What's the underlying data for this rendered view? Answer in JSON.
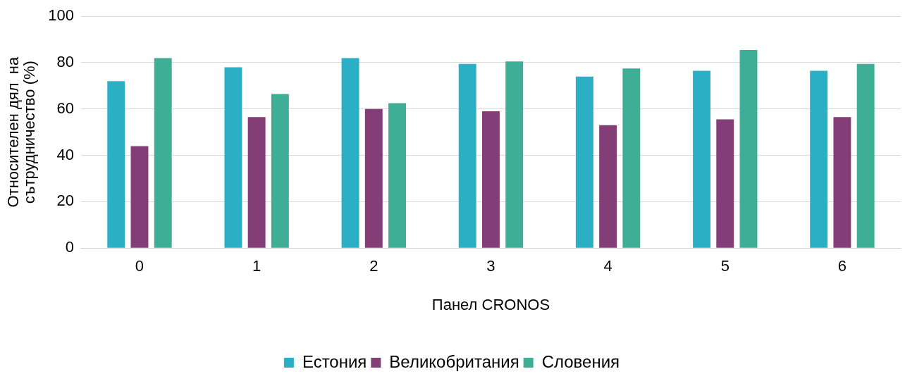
{
  "chart_data": {
    "type": "bar",
    "xlabel": "Панел CRONOS",
    "ylabel": "Относителен дял  на\nсътрудничество (%)",
    "categories": [
      "0",
      "1",
      "2",
      "3",
      "4",
      "5",
      "6"
    ],
    "series": [
      {
        "name": "Естония",
        "color": "#2aafc4",
        "values": [
          72,
          78,
          82,
          79.5,
          74,
          76.5,
          76.5
        ]
      },
      {
        "name": "Великобритания",
        "color": "#833e78",
        "values": [
          44,
          56.5,
          60,
          59,
          53,
          55.5,
          56.5
        ]
      },
      {
        "name": "Словения",
        "color": "#3eae96",
        "values": [
          82,
          66.5,
          62.5,
          80.5,
          77.5,
          85.5,
          79.5
        ]
      }
    ],
    "ylim": [
      0,
      100
    ],
    "yticks": [
      0,
      20,
      40,
      60,
      80,
      100
    ],
    "grid": "y",
    "legend": "bottom"
  }
}
